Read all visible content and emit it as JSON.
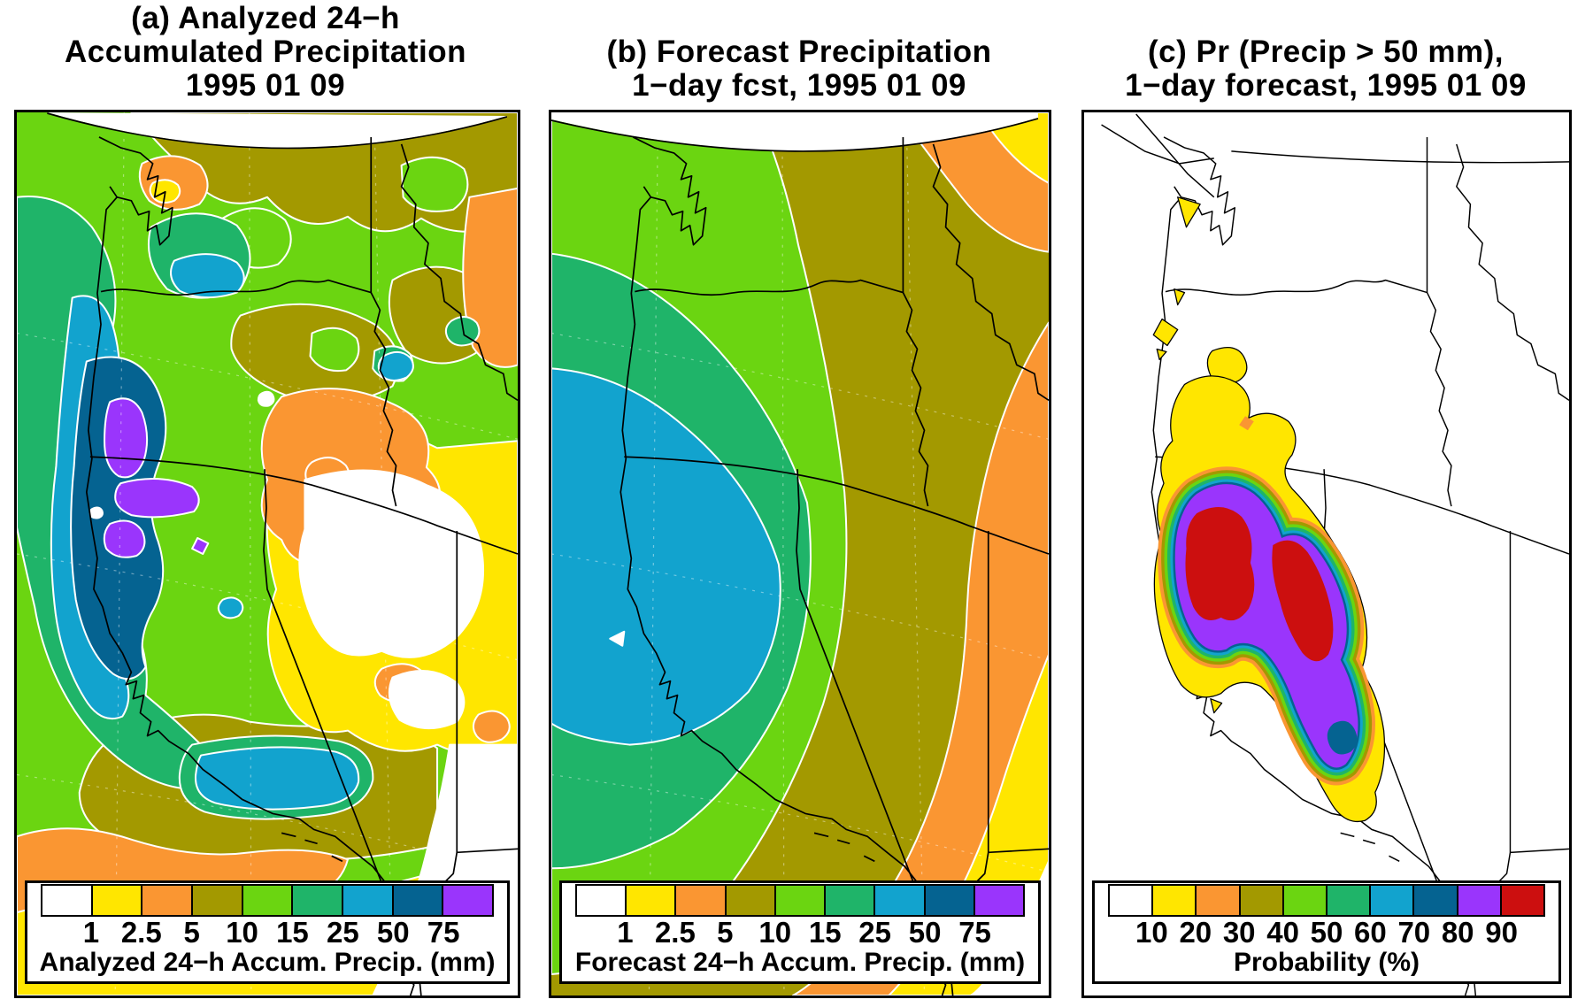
{
  "figure": {
    "panels": [
      {
        "id": "a",
        "title_lines": [
          "(a) Analyzed 24−h",
          "Accumulated Precipitation",
          "1995 01 09"
        ],
        "legend": {
          "ticks": [
            "1",
            "2.5",
            "5",
            "10",
            "15",
            "25",
            "50",
            "75"
          ],
          "caption": "Analyzed 24−h Accum. Precip. (mm)",
          "colors": [
            "#FFFFFF",
            "#FFE600",
            "#FA9632",
            "#A39900",
            "#6BD511",
            "#1FB469",
            "#12A3CE",
            "#056391",
            "#9A35FC"
          ]
        }
      },
      {
        "id": "b",
        "title_lines": [
          "(b) Forecast Precipitation",
          "1−day fcst, 1995 01 09"
        ],
        "legend": {
          "ticks": [
            "1",
            "2.5",
            "5",
            "10",
            "15",
            "25",
            "50",
            "75"
          ],
          "caption": "Forecast 24−h Accum. Precip. (mm)",
          "colors": [
            "#FFFFFF",
            "#FFE600",
            "#FA9632",
            "#A39900",
            "#6BD511",
            "#1FB469",
            "#12A3CE",
            "#056391",
            "#9A35FC"
          ]
        }
      },
      {
        "id": "c",
        "title_lines": [
          "(c) Pr (Precip > 50 mm),",
          "1−day forecast, 1995 01 09"
        ],
        "legend": {
          "ticks": [
            "10",
            "20",
            "30",
            "40",
            "50",
            "60",
            "70",
            "80",
            "90"
          ],
          "caption": "Probability (%)",
          "colors": [
            "#FFFFFF",
            "#FFE600",
            "#FA9632",
            "#A39900",
            "#6BD511",
            "#1FB469",
            "#12A3CE",
            "#056391",
            "#9A35FC",
            "#CC0F0F"
          ]
        }
      }
    ]
  },
  "chart_data": [
    {
      "type": "heatmap",
      "subtype": "filled-contour-map",
      "panel": "a",
      "title": "(a) Analyzed 24−h Accumulated Precipitation 1995 01 09",
      "colorbar_label": "Analyzed 24−h Accum. Precip. (mm)",
      "units": "mm",
      "levels": [
        1,
        2.5,
        5,
        10,
        15,
        25,
        50,
        75
      ],
      "level_colors": [
        "#FFFFFF",
        "#FFE600",
        "#FA9632",
        "#A39900",
        "#6BD511",
        "#1FB469",
        "#12A3CE",
        "#056391",
        "#9A35FC"
      ],
      "max_band": "> 75 mm along the northern California coastal ranges"
    },
    {
      "type": "heatmap",
      "subtype": "filled-contour-map",
      "panel": "b",
      "title": "(b) Forecast Precipitation 1−day fcst, 1995 01 09",
      "colorbar_label": "Forecast 24−h Accum. Precip. (mm)",
      "units": "mm",
      "levels": [
        1,
        2.5,
        5,
        10,
        15,
        25,
        50,
        75
      ],
      "level_colors": [
        "#FFFFFF",
        "#FFE600",
        "#FA9632",
        "#A39900",
        "#6BD511",
        "#1FB469",
        "#12A3CE",
        "#056391",
        "#9A35FC"
      ],
      "max_band": "25–50 mm broad area over California"
    },
    {
      "type": "heatmap",
      "subtype": "filled-contour-map",
      "panel": "c",
      "title": "(c) Pr (Precip > 50 mm), 1−day forecast, 1995 01 09",
      "colorbar_label": "Probability (%)",
      "units": "%",
      "levels": [
        10,
        20,
        30,
        40,
        50,
        60,
        70,
        80,
        90
      ],
      "level_colors": [
        "#FFFFFF",
        "#FFE600",
        "#FA9632",
        "#A39900",
        "#6BD511",
        "#1FB469",
        "#12A3CE",
        "#056391",
        "#9A35FC",
        "#CC0F0F"
      ],
      "max_band": "> 90% in two cores over northern California"
    }
  ]
}
